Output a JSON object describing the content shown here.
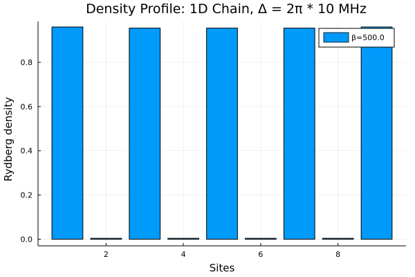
{
  "chart_data": {
    "type": "bar",
    "title": "Density Profile: 1D Chain, Δ = 2π * 10 MHz",
    "xlabel": "Sites",
    "ylabel": "Rydberg density",
    "x": [
      1,
      2,
      3,
      4,
      5,
      6,
      7,
      8,
      9
    ],
    "series": [
      {
        "name": "β=500.0",
        "values": [
          0.96,
          0.004,
          0.955,
          0.004,
          0.955,
          0.004,
          0.955,
          0.004,
          0.96
        ]
      }
    ],
    "xlim": [
      0.24,
      9.76
    ],
    "ylim": [
      -0.03,
      0.985
    ],
    "xticks": [
      2,
      4,
      6,
      8
    ],
    "xtick_labels": [
      "2",
      "4",
      "6",
      "8"
    ],
    "yticks": [
      0.0,
      0.2,
      0.4,
      0.6,
      0.8
    ],
    "ytick_labels": [
      "0.0",
      "0.2",
      "0.4",
      "0.6",
      "0.8"
    ],
    "grid": true,
    "legend_position": "top-right",
    "bar_color": "#009AFA"
  }
}
